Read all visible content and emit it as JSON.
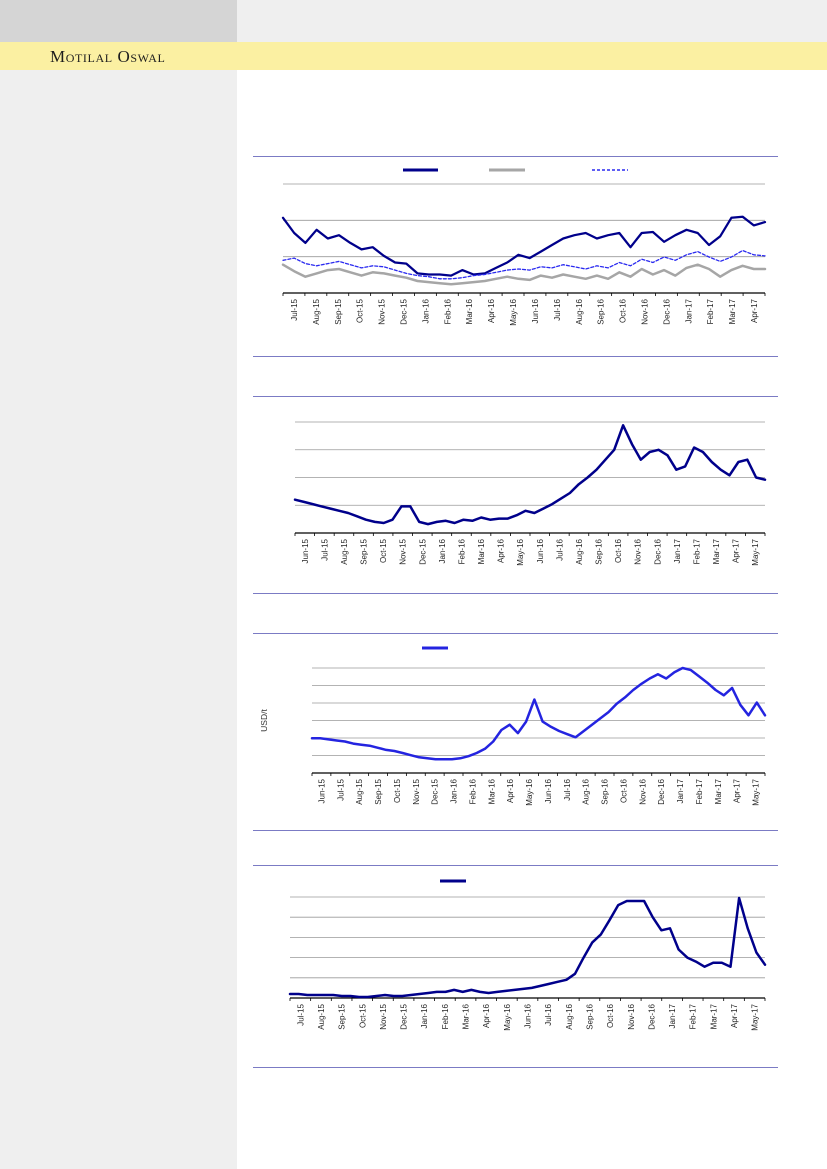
{
  "header": {
    "brand": "Motilal Oswal",
    "band_color": "#fbf0a2",
    "corner_box_color": "#d5d5d5",
    "sidebar_color": "#efefef",
    "divider_color": "#7b7bc4"
  },
  "chart_data": [
    {
      "type": "line",
      "title": "",
      "ylabel": "",
      "y_tick_labels_visible": false,
      "grid_intervals": 3,
      "x_labels": [
        "Jul-15",
        "Aug-15",
        "Sep-15",
        "Oct-15",
        "Nov-15",
        "Dec-15",
        "Jan-16",
        "Feb-16",
        "Mar-16",
        "Apr-16",
        "May-16",
        "Jun-16",
        "Jul-16",
        "Aug-16",
        "Sep-16",
        "Oct-16",
        "Nov-16",
        "Dec-16",
        "Jan-17",
        "Feb-17",
        "Mar-17",
        "Apr-17"
      ],
      "legend": [
        {
          "label": "",
          "name": "navy-solid-series",
          "color": "#00008b",
          "dash": false
        },
        {
          "label": "",
          "name": "gray-solid-series",
          "color": "#a6a6a6",
          "dash": false
        },
        {
          "label": "",
          "name": "blue-dashed-series",
          "color": "#2a2af0",
          "dash": true
        }
      ],
      "value_scale": "relative 0-100 (no numeric axis labels printed)",
      "series": [
        {
          "name": "navy-solid-series",
          "color": "#00008b",
          "dash": false,
          "width": 2.25,
          "points": [
            69,
            55,
            46,
            58,
            50,
            53,
            46,
            40,
            42,
            34,
            28,
            27,
            18,
            17,
            17,
            16,
            21,
            17,
            18,
            23,
            28,
            35,
            32,
            38,
            44,
            50,
            53,
            55,
            50,
            53,
            55,
            42,
            55,
            56,
            47,
            53,
            58,
            55,
            44,
            52,
            69,
            70,
            62,
            65
          ]
        },
        {
          "name": "gray-solid-series",
          "color": "#a6a6a6",
          "dash": false,
          "width": 2.5,
          "points": [
            26,
            20,
            15,
            18,
            21,
            22,
            19,
            16,
            19,
            18,
            16,
            14,
            11,
            10,
            9,
            8,
            9,
            10,
            11,
            13,
            15,
            13,
            12,
            16,
            14,
            17,
            15,
            13,
            16,
            13,
            19,
            15,
            22,
            17,
            21,
            16,
            23,
            26,
            22,
            15,
            21,
            25,
            22,
            22
          ]
        },
        {
          "name": "blue-dashed-series",
          "color": "#2a2af0",
          "dash": true,
          "width": 1.3,
          "points": [
            30,
            32,
            27,
            25,
            27,
            29,
            26,
            23,
            25,
            24,
            21,
            18,
            16,
            15,
            13,
            13,
            14,
            16,
            17,
            19,
            21,
            22,
            21,
            24,
            23,
            26,
            24,
            22,
            25,
            23,
            28,
            25,
            31,
            28,
            33,
            30,
            35,
            38,
            33,
            29,
            33,
            39,
            35,
            34
          ]
        }
      ]
    },
    {
      "type": "line",
      "title": "",
      "ylabel": "",
      "y_tick_labels_visible": false,
      "grid_intervals": 4,
      "x_labels": [
        "Jun-15",
        "Jul-15",
        "Aug-15",
        "Sep-15",
        "Oct-15",
        "Nov-15",
        "Dec-15",
        "Jan-16",
        "Feb-16",
        "Mar-16",
        "Apr-16",
        "May-16",
        "Jun-16",
        "Jul-16",
        "Aug-16",
        "Sep-16",
        "Oct-16",
        "Nov-16",
        "Dec-16",
        "Jan-17",
        "Feb-17",
        "Mar-17",
        "Apr-17",
        "May-17"
      ],
      "legend": [],
      "value_scale": "relative 0-100 (no numeric axis labels printed)",
      "series": [
        {
          "name": "navy-line",
          "color": "#00008b",
          "dash": false,
          "width": 2.5,
          "points": [
            30,
            28,
            26,
            24,
            22,
            20,
            18,
            15,
            12,
            10,
            9,
            12,
            24,
            24,
            10,
            8,
            10,
            11,
            9,
            12,
            11,
            14,
            12,
            13,
            13,
            16,
            20,
            18,
            22,
            26,
            31,
            36,
            44,
            50,
            57,
            66,
            75,
            97,
            80,
            66,
            73,
            75,
            70,
            57,
            60,
            77,
            73,
            64,
            57,
            52,
            64,
            66,
            50,
            48
          ]
        }
      ]
    },
    {
      "type": "line",
      "title": "",
      "ylabel": "USD/t",
      "y_tick_labels_visible": false,
      "grid_intervals": 6,
      "x_labels": [
        "Jun-15",
        "Jul-15",
        "Aug-15",
        "Sep-15",
        "Oct-15",
        "Nov-15",
        "Dec-15",
        "Jan-16",
        "Feb-16",
        "Mar-16",
        "Apr-16",
        "May-16",
        "Jun-16",
        "Jul-16",
        "Aug-16",
        "Sep-16",
        "Oct-16",
        "Nov-16",
        "Dec-16",
        "Jan-17",
        "Feb-17",
        "Mar-17",
        "Apr-17",
        "May-17"
      ],
      "legend": [
        {
          "label": "",
          "name": "blue-price-series",
          "color": "#2424e0",
          "dash": false
        }
      ],
      "value_scale": "relative 0-100 (no numeric axis labels printed)",
      "series": [
        {
          "name": "blue-price-series",
          "color": "#2424e0",
          "dash": false,
          "width": 2.5,
          "points": [
            33,
            33,
            32,
            31,
            30,
            28,
            27,
            26,
            24,
            22,
            21,
            19,
            17,
            15,
            14,
            13,
            13,
            13,
            14,
            16,
            19,
            23,
            30,
            41,
            46,
            38,
            49,
            70,
            49,
            44,
            40,
            37,
            34,
            40,
            46,
            52,
            58,
            66,
            72,
            79,
            85,
            90,
            94,
            90,
            96,
            100,
            98,
            92,
            86,
            79,
            74,
            81,
            65,
            55,
            67,
            55
          ]
        }
      ]
    },
    {
      "type": "line",
      "title": "",
      "ylabel": "",
      "y_tick_labels_visible": false,
      "grid_intervals": 5,
      "x_labels": [
        "Jul-15",
        "Aug-15",
        "Sep-15",
        "Oct-15",
        "Nov-15",
        "Dec-15",
        "Jan-16",
        "Feb-16",
        "Mar-16",
        "Apr-16",
        "May-16",
        "Jun-16",
        "Jul-16",
        "Aug-16",
        "Sep-16",
        "Oct-16",
        "Nov-16",
        "Dec-16",
        "Jan-17",
        "Feb-17",
        "Mar-17",
        "Apr-17",
        "May-17"
      ],
      "legend": [
        {
          "label": "",
          "name": "navy-series",
          "color": "#00008b",
          "dash": false
        }
      ],
      "value_scale": "relative 0-100 (no numeric axis labels printed)",
      "series": [
        {
          "name": "navy-series",
          "color": "#00008b",
          "dash": false,
          "width": 2.5,
          "points": [
            4,
            4,
            3,
            3,
            3,
            3,
            2,
            2,
            1,
            1,
            2,
            3,
            2,
            2,
            3,
            4,
            5,
            6,
            6,
            8,
            6,
            8,
            6,
            5,
            6,
            7,
            8,
            9,
            10,
            12,
            14,
            16,
            18,
            24,
            40,
            55,
            63,
            77,
            92,
            96,
            96,
            96,
            80,
            67,
            69,
            48,
            40,
            36,
            31,
            35,
            35,
            31,
            99,
            69,
            45,
            33
          ]
        }
      ]
    }
  ]
}
